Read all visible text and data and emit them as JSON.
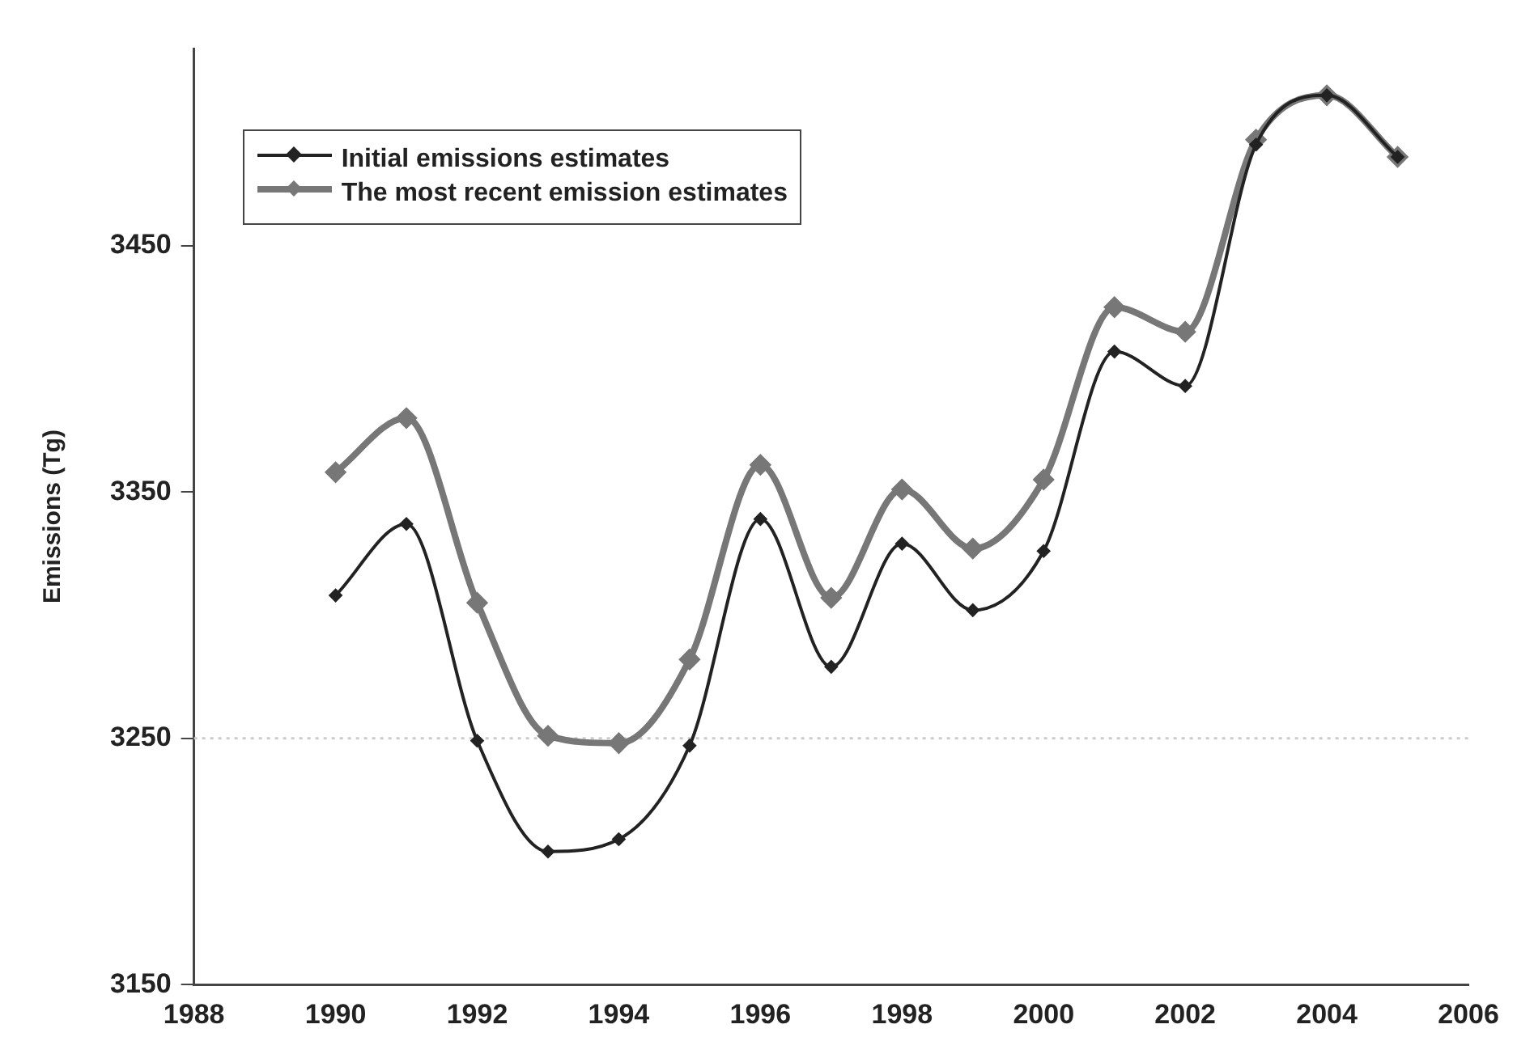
{
  "chart_data": {
    "type": "line",
    "ylabel": "Emissions (Tg)",
    "x": [
      1990,
      1991,
      1992,
      1993,
      1994,
      1995,
      1996,
      1997,
      1998,
      1999,
      2000,
      2001,
      2002,
      2003,
      2004,
      2005
    ],
    "series": [
      {
        "name": "Initial emissions estimates",
        "color": "#222222",
        "values": [
          3308,
          3337,
          3249,
          3204,
          3209,
          3247,
          3339,
          3279,
          3329,
          3302,
          3326,
          3407,
          3393,
          3491,
          3511,
          3486
        ]
      },
      {
        "name": "The most recent emission estimates",
        "color": "#777777",
        "values": [
          3358,
          3380,
          3305,
          3251,
          3248,
          3282,
          3361,
          3307,
          3351,
          3327,
          3355,
          3425,
          3415,
          3493,
          3511,
          3486
        ]
      }
    ],
    "xlim": [
      1988,
      2006
    ],
    "xticks": [
      1988,
      1990,
      1992,
      1994,
      1996,
      1998,
      2000,
      2002,
      2004,
      2006
    ],
    "ylim": [
      3150,
      3530
    ],
    "yticks": [
      3150,
      3250,
      3350,
      3450
    ],
    "ref_lines": [
      {
        "axis": "y",
        "value": 3250,
        "color": "#cccccc",
        "line_style": "dotted"
      }
    ],
    "grid": false,
    "legend": "top left",
    "marker": "diamond",
    "line_style": "solid"
  }
}
